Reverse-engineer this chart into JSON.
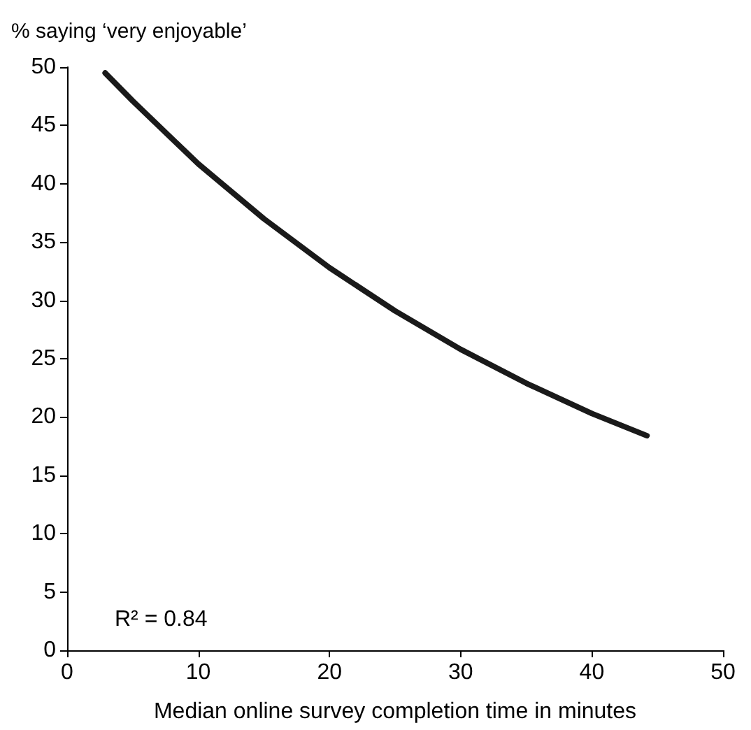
{
  "chart_data": {
    "type": "line",
    "xlabel": "Median online survey completion time in minutes",
    "ylabel": "% saying ‘very enjoyable’",
    "series": [
      {
        "color": "#1a1a1a",
        "x": [
          2.9,
          5,
          10,
          15,
          20,
          25,
          30,
          35,
          40,
          44.2
        ],
        "values": [
          49.5,
          47.1,
          41.7,
          37.0,
          32.8,
          29.1,
          25.8,
          22.9,
          20.3,
          18.4
        ]
      }
    ],
    "xlim": [
      0,
      50
    ],
    "xticks": [
      0,
      10,
      20,
      30,
      40,
      50
    ],
    "ylim": [
      0,
      50
    ],
    "yticks": [
      0,
      5,
      10,
      15,
      20,
      25,
      30,
      35,
      40,
      45,
      50
    ],
    "annotations": [
      "R² = 0.84"
    ],
    "grid": false,
    "marker": "none",
    "line_style": "solid"
  }
}
